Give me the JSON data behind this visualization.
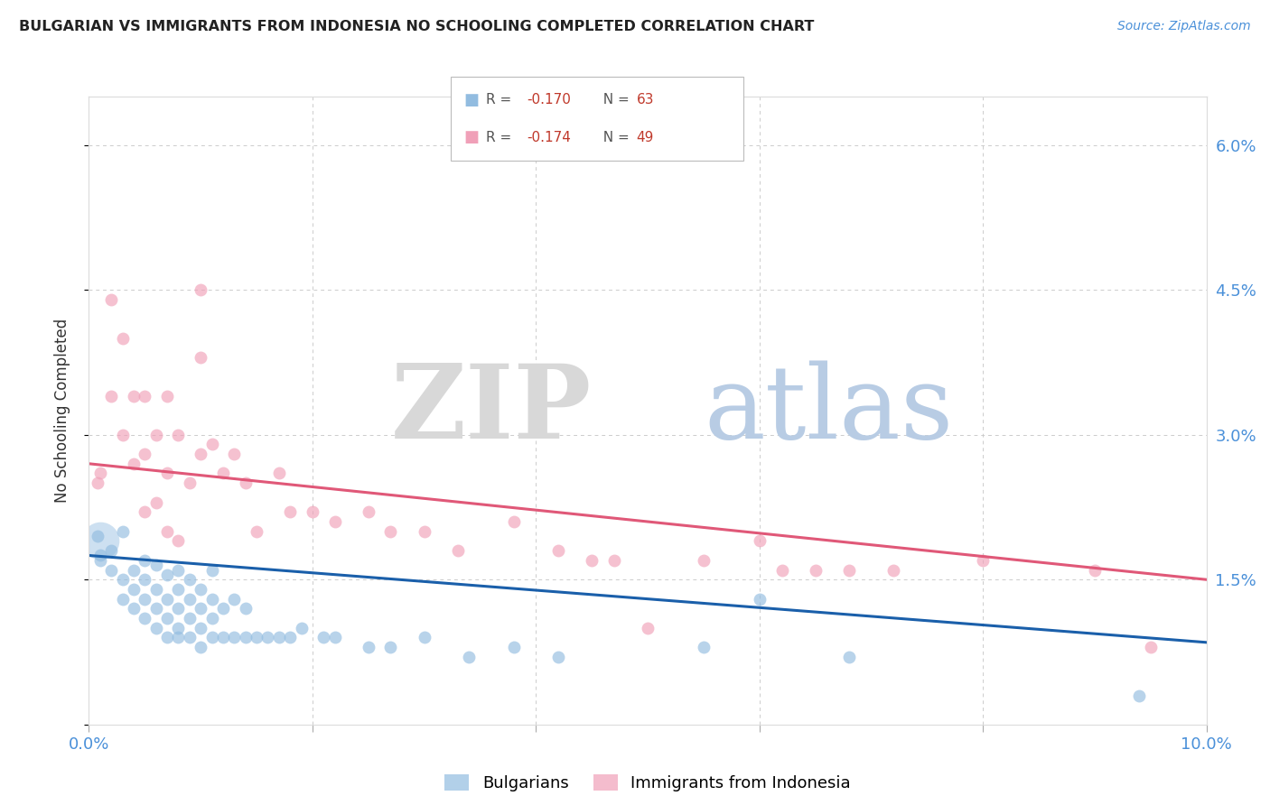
{
  "title": "BULGARIAN VS IMMIGRANTS FROM INDONESIA NO SCHOOLING COMPLETED CORRELATION CHART",
  "source": "Source: ZipAtlas.com",
  "ylabel": "No Schooling Completed",
  "xlim": [
    0.0,
    0.1
  ],
  "ylim": [
    0.0,
    0.065
  ],
  "blue_color": "#92bce0",
  "pink_color": "#f0a0b8",
  "blue_line_color": "#1a5faa",
  "pink_line_color": "#e05878",
  "grid_color": "#cccccc",
  "background_color": "#ffffff",
  "blue_scatter_x": [
    0.0008,
    0.001,
    0.001,
    0.002,
    0.002,
    0.003,
    0.003,
    0.003,
    0.004,
    0.004,
    0.004,
    0.005,
    0.005,
    0.005,
    0.005,
    0.006,
    0.006,
    0.006,
    0.006,
    0.007,
    0.007,
    0.007,
    0.007,
    0.008,
    0.008,
    0.008,
    0.008,
    0.008,
    0.009,
    0.009,
    0.009,
    0.009,
    0.01,
    0.01,
    0.01,
    0.01,
    0.011,
    0.011,
    0.011,
    0.011,
    0.012,
    0.012,
    0.013,
    0.013,
    0.014,
    0.014,
    0.015,
    0.016,
    0.017,
    0.018,
    0.019,
    0.021,
    0.022,
    0.025,
    0.027,
    0.03,
    0.034,
    0.038,
    0.042,
    0.055,
    0.06,
    0.068,
    0.094
  ],
  "blue_scatter_y": [
    0.0195,
    0.017,
    0.0175,
    0.016,
    0.018,
    0.013,
    0.015,
    0.02,
    0.012,
    0.014,
    0.016,
    0.011,
    0.013,
    0.015,
    0.017,
    0.01,
    0.012,
    0.014,
    0.0165,
    0.009,
    0.011,
    0.013,
    0.0155,
    0.009,
    0.01,
    0.012,
    0.014,
    0.016,
    0.009,
    0.011,
    0.013,
    0.015,
    0.008,
    0.01,
    0.012,
    0.014,
    0.009,
    0.011,
    0.013,
    0.016,
    0.009,
    0.012,
    0.009,
    0.013,
    0.009,
    0.012,
    0.009,
    0.009,
    0.009,
    0.009,
    0.01,
    0.009,
    0.009,
    0.008,
    0.008,
    0.009,
    0.007,
    0.008,
    0.007,
    0.008,
    0.013,
    0.007,
    0.003
  ],
  "blue_scatter_big_x": [
    0.001
  ],
  "blue_scatter_big_y": [
    0.019
  ],
  "pink_scatter_x": [
    0.0008,
    0.001,
    0.002,
    0.002,
    0.003,
    0.003,
    0.004,
    0.004,
    0.005,
    0.005,
    0.005,
    0.006,
    0.006,
    0.007,
    0.007,
    0.007,
    0.008,
    0.008,
    0.009,
    0.01,
    0.01,
    0.01,
    0.011,
    0.012,
    0.013,
    0.014,
    0.015,
    0.017,
    0.018,
    0.02,
    0.022,
    0.025,
    0.027,
    0.03,
    0.033,
    0.038,
    0.042,
    0.045,
    0.047,
    0.05,
    0.055,
    0.06,
    0.062,
    0.065,
    0.068,
    0.072,
    0.08,
    0.09,
    0.095
  ],
  "pink_scatter_y": [
    0.025,
    0.026,
    0.034,
    0.044,
    0.03,
    0.04,
    0.027,
    0.034,
    0.022,
    0.028,
    0.034,
    0.023,
    0.03,
    0.02,
    0.026,
    0.034,
    0.019,
    0.03,
    0.025,
    0.045,
    0.038,
    0.028,
    0.029,
    0.026,
    0.028,
    0.025,
    0.02,
    0.026,
    0.022,
    0.022,
    0.021,
    0.022,
    0.02,
    0.02,
    0.018,
    0.021,
    0.018,
    0.017,
    0.017,
    0.01,
    0.017,
    0.019,
    0.016,
    0.016,
    0.016,
    0.016,
    0.017,
    0.016,
    0.008
  ],
  "blue_line_x": [
    0.0,
    0.1
  ],
  "blue_line_y": [
    0.0175,
    0.0085
  ],
  "pink_line_x": [
    0.0,
    0.1
  ],
  "pink_line_y": [
    0.027,
    0.015
  ]
}
